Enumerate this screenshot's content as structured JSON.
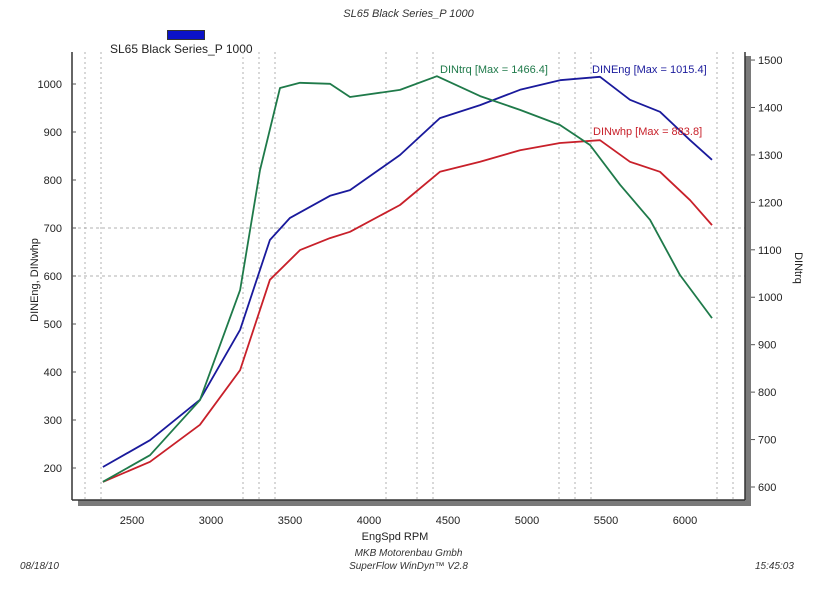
{
  "chart_data": {
    "type": "line",
    "title": "SL65 Black Series_P 1000",
    "xlabel": "EngSpd  RPM",
    "ylabel_left": "DINEng, DINwhp",
    "ylabel_right": "DINtrq",
    "xlim": [
      2200,
      6500
    ],
    "ylim_left": [
      200,
      1000
    ],
    "ylim_right": [
      600,
      1500
    ],
    "x_ticks": [
      "2500",
      "3000",
      "3500",
      "4000",
      "4500",
      "5000",
      "5500",
      "6000"
    ],
    "x_tick_values": [
      2500,
      3000,
      3500,
      4000,
      4500,
      5000,
      5500,
      6000
    ],
    "y_left_ticks": [
      "1000",
      "900",
      "800",
      "700",
      "600",
      "500",
      "400",
      "300",
      "200"
    ],
    "y_left_tick_values": [
      1000,
      900,
      800,
      700,
      600,
      500,
      400,
      300,
      200
    ],
    "y_right_ticks": [
      "1500",
      "1400",
      "1300",
      "1200",
      "1100",
      "1000",
      "900",
      "800",
      "700",
      "600"
    ],
    "y_right_tick_values": [
      1500,
      1400,
      1300,
      1200,
      1100,
      1000,
      900,
      800,
      700,
      600
    ],
    "grid": "dotted",
    "legend": {
      "position": "top-left",
      "entries": [
        {
          "name": "SL65 Black Series_P 1000",
          "color": "#0b12c8"
        }
      ]
    },
    "series": [
      {
        "name": "DINEng",
        "axis": "left",
        "color": "#1a1a9c",
        "annotation": "DINEng [Max = 1015.4]",
        "x": [
          2316,
          2614,
          2930,
          3184,
          3373,
          3500,
          3753,
          3880,
          4196,
          4449,
          4703,
          4956,
          5209,
          5462,
          5652,
          5842,
          6032,
          6171
        ],
        "y": [
          202,
          258,
          342,
          488,
          675,
          721,
          767,
          779,
          852,
          929,
          956,
          988,
          1008,
          1015,
          967,
          942,
          883,
          842
        ]
      },
      {
        "name": "DINwhp",
        "axis": "left",
        "color": "#c8202a",
        "annotation": "DINwhp [Max = 883.8]",
        "x": [
          2316,
          2614,
          2930,
          3184,
          3373,
          3563,
          3753,
          3880,
          4196,
          4449,
          4703,
          4956,
          5209,
          5462,
          5652,
          5842,
          6032,
          6171
        ],
        "y": [
          171,
          213,
          290,
          404,
          592,
          654,
          679,
          692,
          748,
          817,
          838,
          862,
          877,
          883,
          838,
          817,
          758,
          706
        ]
      },
      {
        "name": "DINtrq",
        "axis": "right",
        "color": "#1f7a4a",
        "annotation": "DINtrq [Max = 1466.4]",
        "x": [
          2316,
          2614,
          2930,
          3184,
          3310,
          3437,
          3563,
          3753,
          3880,
          4196,
          4430,
          4703,
          4956,
          5209,
          5399,
          5589,
          5779,
          5968,
          6171
        ],
        "y": [
          611,
          667,
          783,
          1015,
          1268,
          1441,
          1452,
          1450,
          1422,
          1437,
          1466,
          1424,
          1395,
          1363,
          1321,
          1237,
          1163,
          1047,
          956
        ]
      }
    ]
  },
  "footer": {
    "date": "08/18/10",
    "company": "MKB Motorenbau Gmbh",
    "software": "SuperFlow WinDyn™ V2.8",
    "time": "15:45:03"
  }
}
